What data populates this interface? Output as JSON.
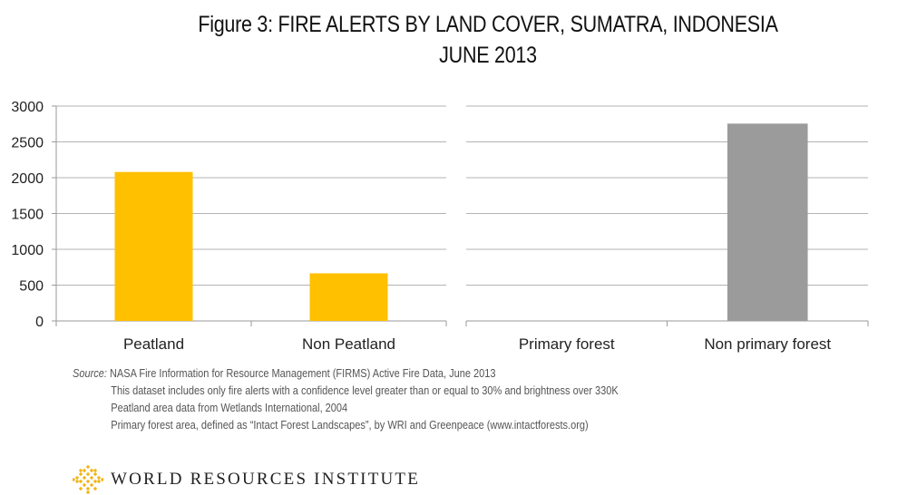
{
  "title_line1": "Figure 3: FIRE ALERTS BY LAND COVER, SUMATRA, INDONESIA",
  "title_line2": "JUNE 2013",
  "chart_data": [
    {
      "type": "bar",
      "categories": [
        "Peatland",
        "Non Peatland"
      ],
      "values": [
        2080,
        665
      ],
      "ylim": [
        0,
        3000
      ],
      "yticks": [
        0,
        500,
        1000,
        1500,
        2000,
        2500,
        3000
      ],
      "color": "#FFC000",
      "grid": true
    },
    {
      "type": "bar",
      "categories": [
        "Primary forest",
        "Non primary forest"
      ],
      "values": [
        0,
        2755
      ],
      "ylim": [
        0,
        3000
      ],
      "color": "#9B9B9B",
      "grid": true
    }
  ],
  "notes": {
    "source_label": "Source:",
    "line1": "NASA Fire Information for Resource Management (FIRMS) Active Fire Data, June 2013",
    "line2": "This dataset includes only fire alerts with a confidence level greater than or equal to 30% and brightness over 330K",
    "line3": "Peatland area data from Wetlands International, 2004",
    "line4": "Primary forest area, defined as “Intact Forest Landscapes”, by WRI and Greenpeace (www.intactforests.org)"
  },
  "logo": {
    "text": "WORLD RESOURCES INSTITUTE",
    "icon": "wri-logo-icon",
    "color": "#F2B619"
  }
}
